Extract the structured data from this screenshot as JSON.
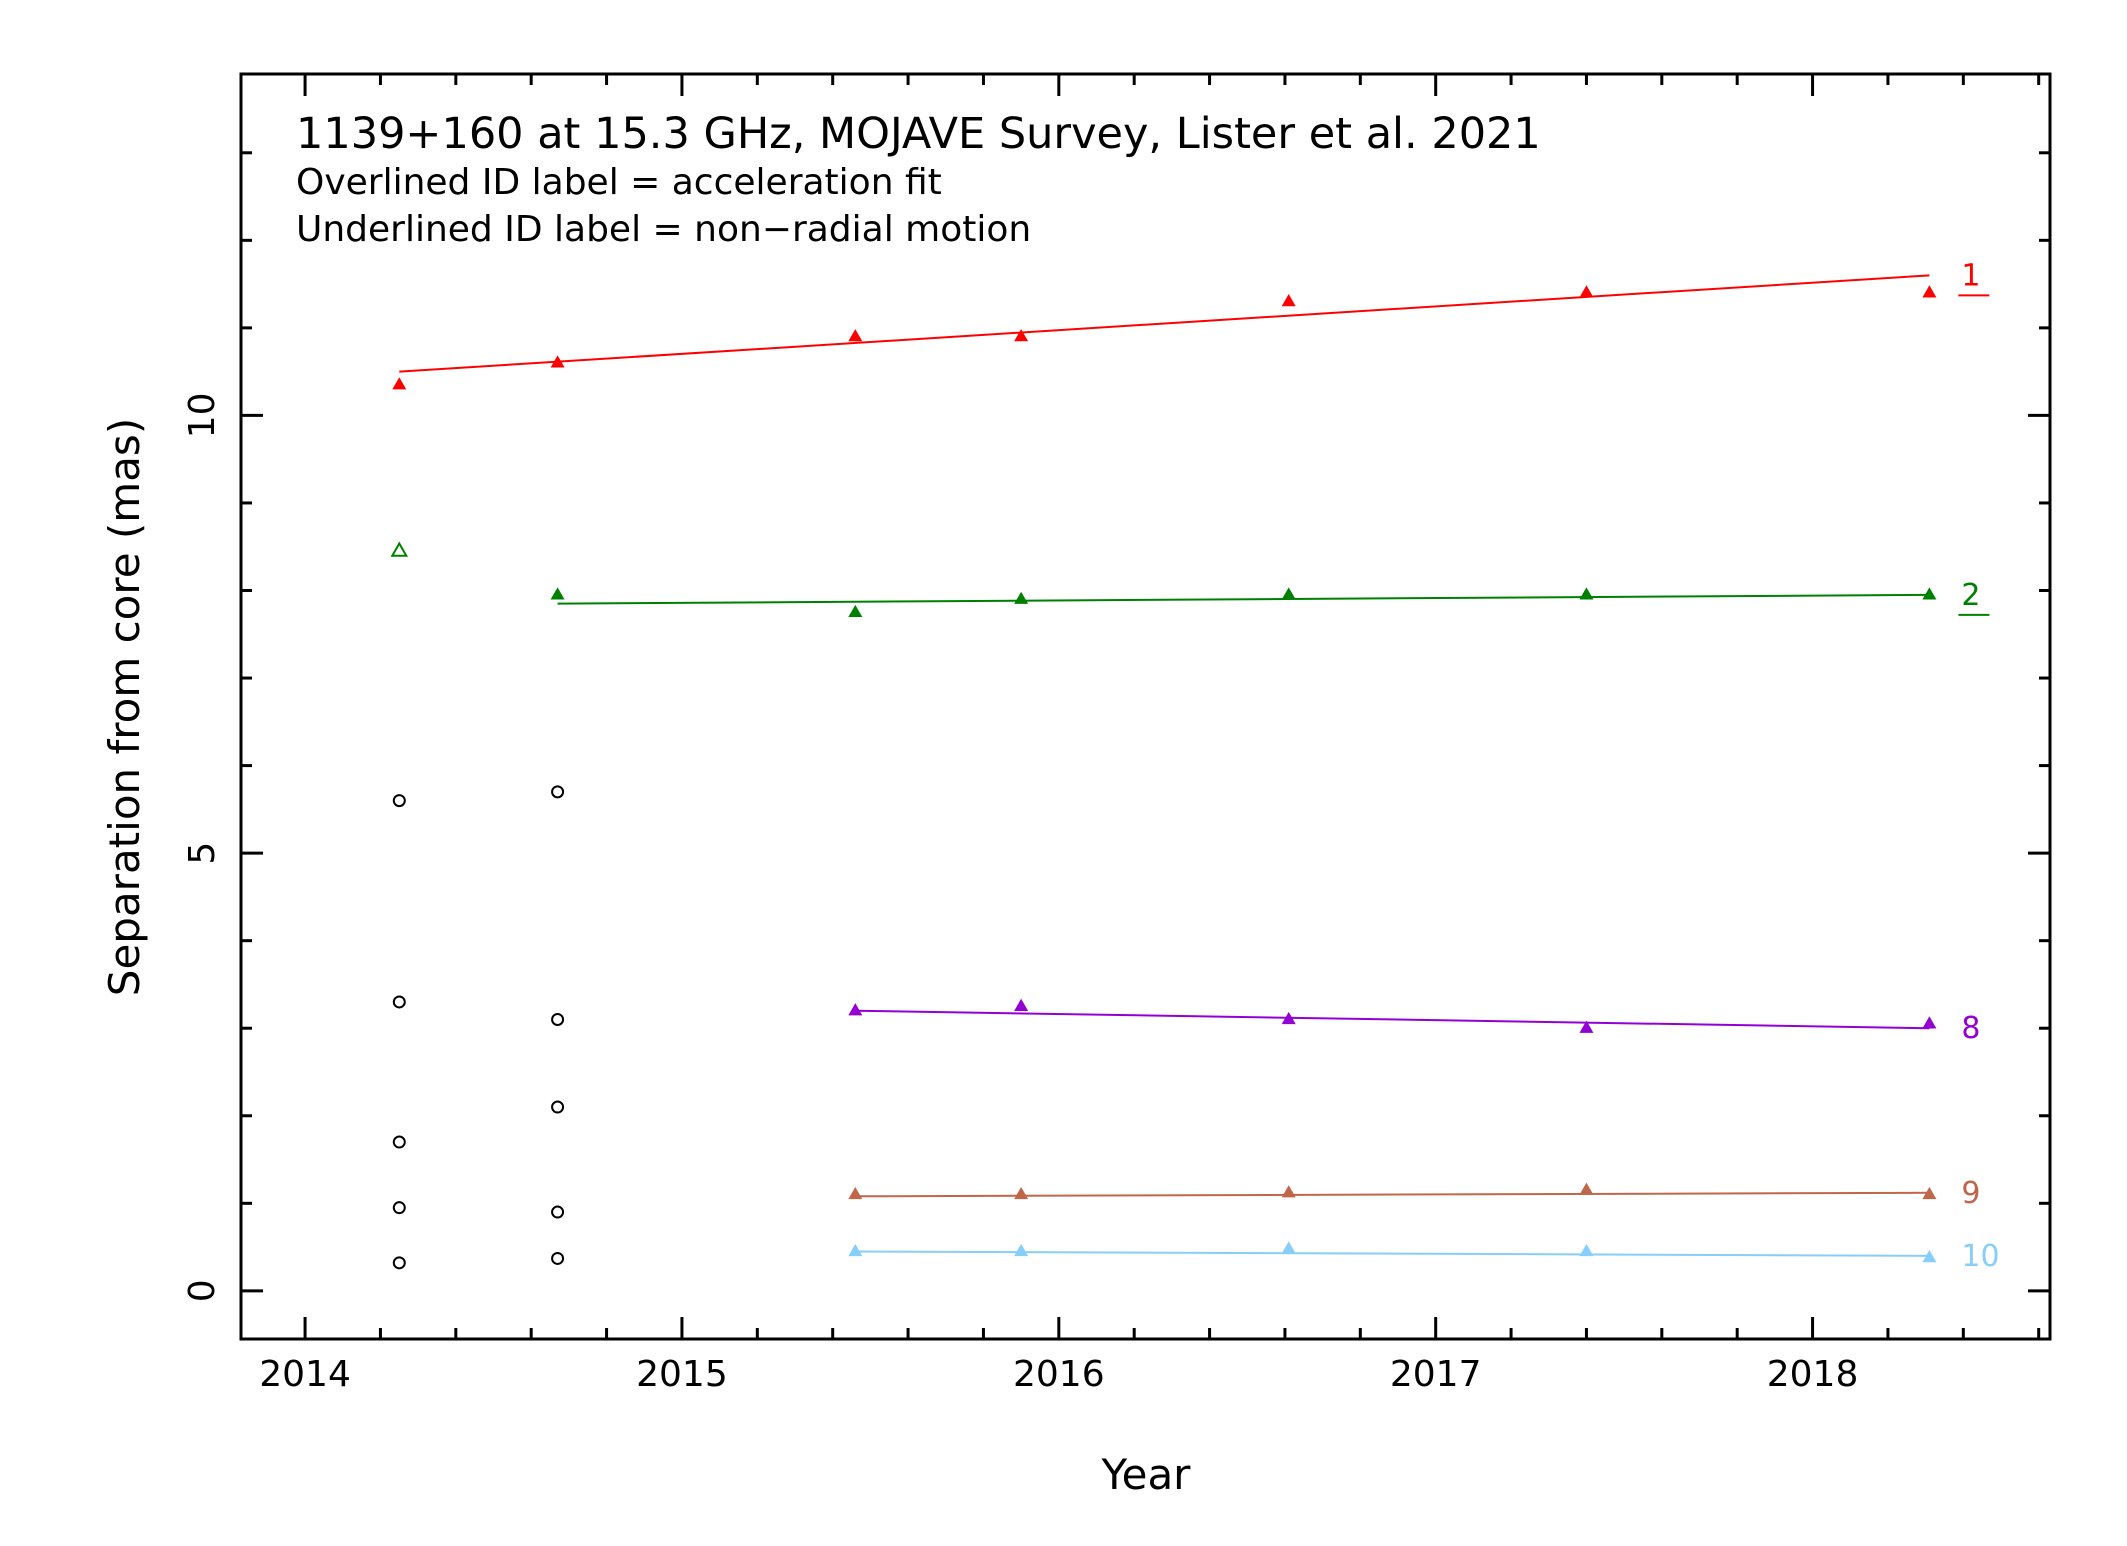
{
  "chart_data": {
    "type": "scatter",
    "title": "1139+160 at 15.3 GHz, MOJAVE Survey, Lister et al. 2021",
    "notes": [
      "Overlined ID label = acceleration fit",
      "Underlined ID label = non−radial motion"
    ],
    "xlabel": "Year",
    "ylabel": "Separation from core (mas)",
    "xlim": [
      2013.83,
      2018.63
    ],
    "ylim": [
      -0.55,
      13.9
    ],
    "xticks": [
      2014,
      2015,
      2016,
      2017,
      2018
    ],
    "yticks": [
      0,
      5,
      10
    ],
    "grid": false,
    "series": [
      {
        "name": "1",
        "color": "#ff0000",
        "underlined": true,
        "points": [
          {
            "x": 2014.25,
            "y": 10.35
          },
          {
            "x": 2014.67,
            "y": 10.6
          },
          {
            "x": 2015.46,
            "y": 10.9
          },
          {
            "x": 2015.9,
            "y": 10.9
          },
          {
            "x": 2016.61,
            "y": 11.3
          },
          {
            "x": 2017.4,
            "y": 11.4
          },
          {
            "x": 2018.31,
            "y": 11.4
          }
        ],
        "open_points": [],
        "fit": [
          {
            "x": 2014.25,
            "y": 10.5
          },
          {
            "x": 2018.31,
            "y": 11.6
          }
        ]
      },
      {
        "name": "2",
        "color": "#008000",
        "underlined": true,
        "points": [
          {
            "x": 2014.67,
            "y": 7.95
          },
          {
            "x": 2015.46,
            "y": 7.75
          },
          {
            "x": 2015.9,
            "y": 7.9
          },
          {
            "x": 2016.61,
            "y": 7.95
          },
          {
            "x": 2017.4,
            "y": 7.95
          },
          {
            "x": 2018.31,
            "y": 7.95
          }
        ],
        "open_points": [
          {
            "x": 2014.25,
            "y": 8.45
          }
        ],
        "fit": [
          {
            "x": 2014.67,
            "y": 7.85
          },
          {
            "x": 2018.31,
            "y": 7.95
          }
        ]
      },
      {
        "name": "8",
        "color": "#9400d3",
        "underlined": false,
        "points": [
          {
            "x": 2015.46,
            "y": 3.2
          },
          {
            "x": 2015.9,
            "y": 3.25
          },
          {
            "x": 2016.61,
            "y": 3.1
          },
          {
            "x": 2017.4,
            "y": 3.0
          },
          {
            "x": 2018.31,
            "y": 3.05
          }
        ],
        "open_points": [],
        "fit": [
          {
            "x": 2015.46,
            "y": 3.2
          },
          {
            "x": 2018.31,
            "y": 3.0
          }
        ]
      },
      {
        "name": "9",
        "color": "#c0674a",
        "underlined": false,
        "points": [
          {
            "x": 2015.46,
            "y": 1.1
          },
          {
            "x": 2015.9,
            "y": 1.1
          },
          {
            "x": 2016.61,
            "y": 1.12
          },
          {
            "x": 2017.4,
            "y": 1.15
          },
          {
            "x": 2018.31,
            "y": 1.1
          }
        ],
        "open_points": [],
        "fit": [
          {
            "x": 2015.46,
            "y": 1.08
          },
          {
            "x": 2018.31,
            "y": 1.12
          }
        ]
      },
      {
        "name": "10",
        "color": "#87cefa",
        "underlined": false,
        "points": [
          {
            "x": 2015.46,
            "y": 0.45
          },
          {
            "x": 2015.9,
            "y": 0.45
          },
          {
            "x": 2016.61,
            "y": 0.48
          },
          {
            "x": 2017.4,
            "y": 0.45
          },
          {
            "x": 2018.31,
            "y": 0.38
          }
        ],
        "open_points": [],
        "fit": [
          {
            "x": 2015.46,
            "y": 0.45
          },
          {
            "x": 2018.31,
            "y": 0.4
          }
        ]
      }
    ],
    "unidentified": {
      "color": "#000000",
      "points": [
        {
          "x": 2014.25,
          "y": 5.6
        },
        {
          "x": 2014.25,
          "y": 3.3
        },
        {
          "x": 2014.25,
          "y": 1.7
        },
        {
          "x": 2014.25,
          "y": 0.95
        },
        {
          "x": 2014.25,
          "y": 0.32
        },
        {
          "x": 2014.67,
          "y": 5.7
        },
        {
          "x": 2014.67,
          "y": 3.1
        },
        {
          "x": 2014.67,
          "y": 2.1
        },
        {
          "x": 2014.67,
          "y": 0.9
        },
        {
          "x": 2014.67,
          "y": 0.37
        }
      ]
    }
  }
}
